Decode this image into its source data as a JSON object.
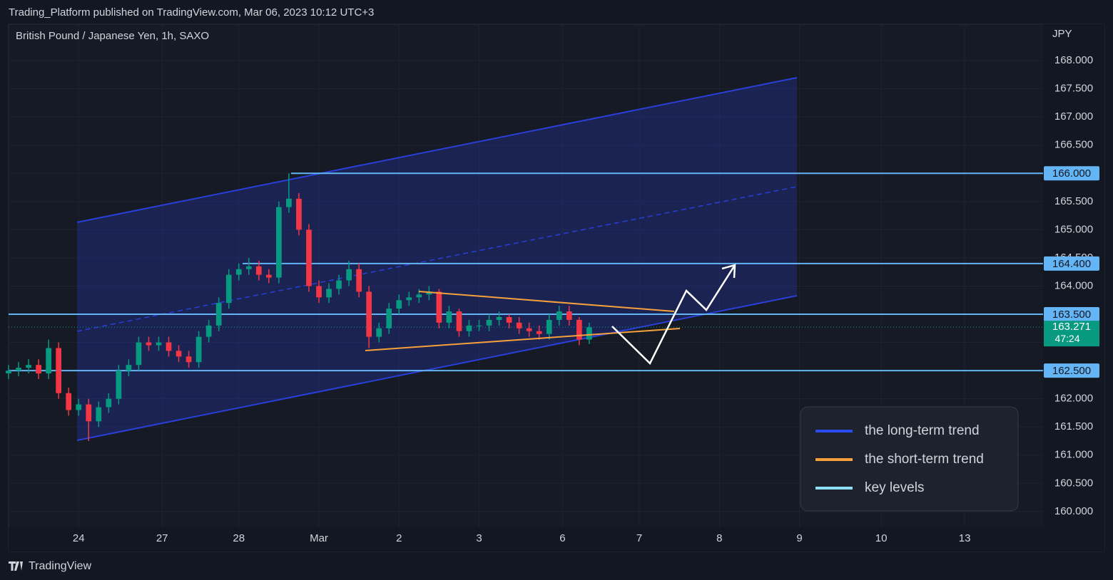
{
  "chart_data": {
    "type": "candlestick",
    "publisher": "Trading_Platform published on TradingView.com, Mar 06, 2023 10:12 UTC+3",
    "title": "British Pound / Japanese Yen, 1h, SAXO",
    "y_axis_label": "JPY",
    "brand": "TradingView",
    "x": [
      0,
      3,
      6,
      9,
      12,
      15,
      18,
      21,
      24,
      27,
      30,
      33,
      36,
      39,
      42,
      45,
      48,
      51,
      54,
      57,
      60,
      63,
      66,
      69,
      72,
      75,
      78,
      81,
      84,
      87,
      90,
      93,
      96,
      99,
      102,
      105,
      108,
      111,
      114,
      117,
      120,
      123,
      126,
      129,
      132,
      135,
      138,
      141,
      144,
      147,
      150,
      153,
      156,
      159,
      162,
      165,
      168,
      171,
      174
    ],
    "xlim": [
      0,
      310
    ],
    "xticks": [
      {
        "value": 21,
        "label": "24"
      },
      {
        "value": 46,
        "label": "27"
      },
      {
        "value": 69,
        "label": "28"
      },
      {
        "value": 93,
        "label": "Mar"
      },
      {
        "value": 117,
        "label": "2"
      },
      {
        "value": 141,
        "label": "3"
      },
      {
        "value": 166,
        "label": "6"
      },
      {
        "value": 189,
        "label": "7"
      },
      {
        "value": 213,
        "label": "8"
      },
      {
        "value": 237,
        "label": "9"
      },
      {
        "value": 261.5,
        "label": "10"
      },
      {
        "value": 286.5,
        "label": "13"
      }
    ],
    "ylim": [
      159.72,
      168.57
    ],
    "yticks": [
      {
        "value": 160,
        "label": "160.000"
      },
      {
        "value": 160.5,
        "label": "160.500"
      },
      {
        "value": 161,
        "label": "161.000"
      },
      {
        "value": 161.5,
        "label": "161.500"
      },
      {
        "value": 162,
        "label": "162.000"
      },
      {
        "value": 162.5,
        "label": "162.500"
      },
      {
        "value": 163,
        "label": "163.000"
      },
      {
        "value": 163.5,
        "label": "163.500"
      },
      {
        "value": 164,
        "label": "164.000"
      },
      {
        "value": 164.5,
        "label": "164.500"
      },
      {
        "value": 165,
        "label": "165.000"
      },
      {
        "value": 165.5,
        "label": "165.500"
      },
      {
        "value": 166,
        "label": "166.000"
      },
      {
        "value": 166.5,
        "label": "166.500"
      },
      {
        "value": 167,
        "label": "167.000"
      },
      {
        "value": 167.5,
        "label": "167.500"
      },
      {
        "value": 168,
        "label": "168.000"
      }
    ],
    "grid": true,
    "up_color": "#089981",
    "down_color": "#f23645",
    "series": {
      "open": [
        162.45,
        162.5,
        162.55,
        162.6,
        162.45,
        162.9,
        162.1,
        161.8,
        161.9,
        161.6,
        161.85,
        162.0,
        162.5,
        162.6,
        163.0,
        162.95,
        163.0,
        162.85,
        162.75,
        162.65,
        163.1,
        163.3,
        163.7,
        164.2,
        164.3,
        164.35,
        164.2,
        164.15,
        165.4,
        165.55,
        165.0,
        164.0,
        163.8,
        163.95,
        164.1,
        164.3,
        163.9,
        163.1,
        163.25,
        163.6,
        163.75,
        163.8,
        163.85,
        163.9,
        163.35,
        163.55,
        163.2,
        163.3,
        163.3,
        163.4,
        163.45,
        163.35,
        163.25,
        163.2,
        163.15,
        163.4,
        163.55,
        163.4,
        163.05
      ],
      "high": [
        162.6,
        162.65,
        162.7,
        162.7,
        163.05,
        163.0,
        162.2,
        162.0,
        162.0,
        161.95,
        162.1,
        162.6,
        162.7,
        163.1,
        163.1,
        163.1,
        163.1,
        162.95,
        162.85,
        163.2,
        163.4,
        163.8,
        164.3,
        164.4,
        164.5,
        164.45,
        164.3,
        165.5,
        166.0,
        165.65,
        165.1,
        164.1,
        164.05,
        164.2,
        164.45,
        164.4,
        164.0,
        163.35,
        163.7,
        163.85,
        163.9,
        163.95,
        164.0,
        163.95,
        163.65,
        163.6,
        163.4,
        163.4,
        163.5,
        163.55,
        163.5,
        163.45,
        163.35,
        163.3,
        163.5,
        163.65,
        163.65,
        163.45,
        163.35
      ],
      "low": [
        162.35,
        162.4,
        162.45,
        162.35,
        162.35,
        162.0,
        161.7,
        161.7,
        161.25,
        161.5,
        161.75,
        161.9,
        162.4,
        162.5,
        162.85,
        162.85,
        162.75,
        162.65,
        162.55,
        162.55,
        163.0,
        163.2,
        163.6,
        164.1,
        164.2,
        164.1,
        164.05,
        164.05,
        165.3,
        164.9,
        163.9,
        163.7,
        163.7,
        163.85,
        164.0,
        163.8,
        162.9,
        163.0,
        163.15,
        163.5,
        163.65,
        163.7,
        163.75,
        163.25,
        163.25,
        163.1,
        163.1,
        163.2,
        163.2,
        163.3,
        163.25,
        163.15,
        163.1,
        163.05,
        163.05,
        163.3,
        163.3,
        162.95,
        162.97
      ],
      "close": [
        162.5,
        162.55,
        162.6,
        162.45,
        162.9,
        162.1,
        161.8,
        161.9,
        161.6,
        161.85,
        162.0,
        162.5,
        162.6,
        163.0,
        162.95,
        163.0,
        162.85,
        162.75,
        162.65,
        163.1,
        163.3,
        163.7,
        164.2,
        164.3,
        164.35,
        164.2,
        164.15,
        165.4,
        165.55,
        165.0,
        164.0,
        163.8,
        163.95,
        164.1,
        164.3,
        163.9,
        163.1,
        163.25,
        163.6,
        163.75,
        163.8,
        163.85,
        163.9,
        163.35,
        163.55,
        163.2,
        163.3,
        163.3,
        163.4,
        163.45,
        163.35,
        163.25,
        163.2,
        163.15,
        163.4,
        163.55,
        163.4,
        163.05,
        163.27
      ]
    },
    "key_level_color": "#64b5f6",
    "key_levels": [
      {
        "value": 166,
        "label": "166.000"
      },
      {
        "value": 164.4,
        "label": "164.400"
      },
      {
        "value": 163.5,
        "label": "163.500"
      },
      {
        "value": 162.5,
        "label": "162.500"
      }
    ],
    "last_price": {
      "value": 163.271,
      "label": "163.271"
    },
    "countdown": "47:24",
    "legend": [
      {
        "name": "the long-term trend",
        "color": "#2a4bf0"
      },
      {
        "name": "the short-term trend",
        "color": "#f7a13c"
      },
      {
        "name": "key levels",
        "color": "#8ee0f7"
      }
    ]
  }
}
